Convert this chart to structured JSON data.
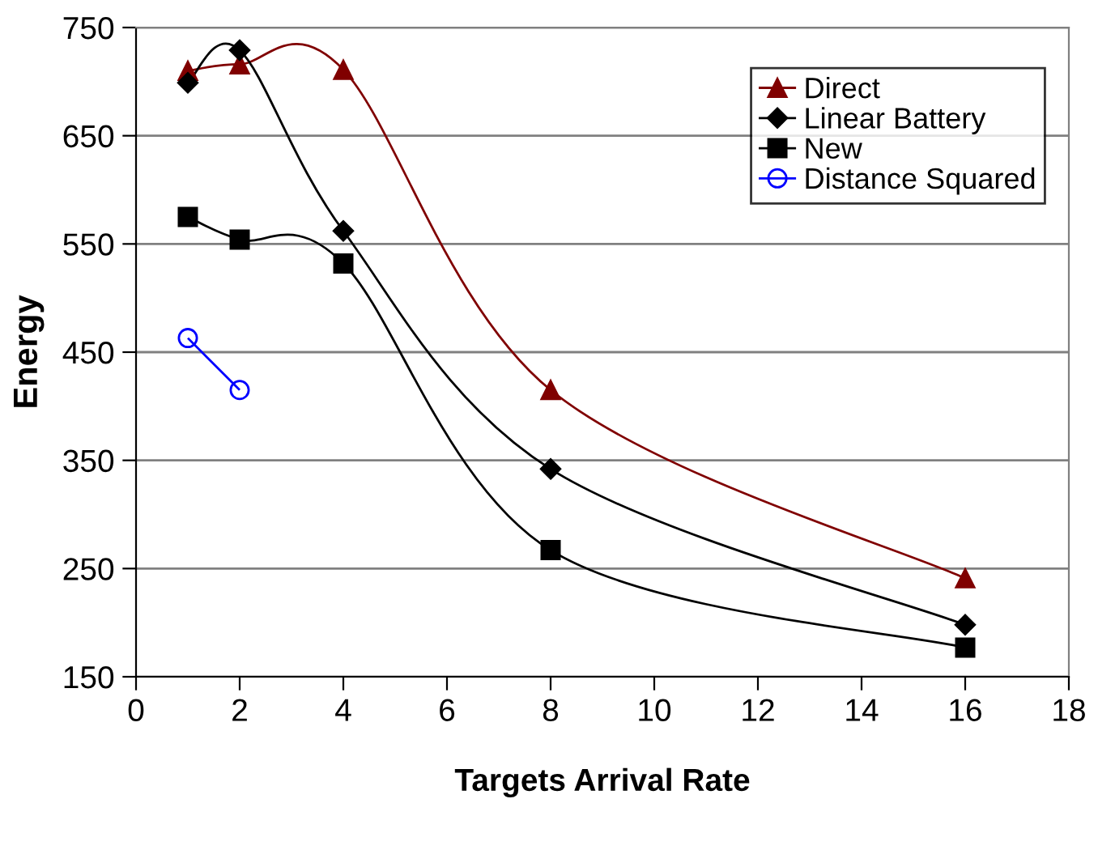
{
  "chart_data": {
    "type": "line",
    "xlabel": "Targets Arrival Rate",
    "ylabel": "Energy",
    "x": [
      1,
      2,
      4,
      8,
      16
    ],
    "series": [
      {
        "name": "Direct",
        "color": "#800000",
        "marker": "triangle",
        "values": [
          710,
          716,
          711,
          415,
          241
        ]
      },
      {
        "name": "Linear Battery",
        "color": "#000000",
        "marker": "diamond",
        "values": [
          699,
          729,
          562,
          342,
          198
        ]
      },
      {
        "name": "New",
        "color": "#000000",
        "marker": "square",
        "values": [
          575,
          554,
          532,
          267,
          177
        ]
      },
      {
        "name": "Distance Squared",
        "color": "#0000ff",
        "marker": "circle",
        "x": [
          1,
          2
        ],
        "values": [
          463,
          415
        ]
      }
    ],
    "xlim": [
      0,
      18
    ],
    "xticks": [
      0,
      2,
      4,
      6,
      8,
      10,
      12,
      14,
      16,
      18
    ],
    "ylim": [
      150,
      750
    ],
    "yticks": [
      150,
      250,
      350,
      450,
      550,
      650,
      750
    ],
    "grid": "y",
    "legend": "top right"
  }
}
